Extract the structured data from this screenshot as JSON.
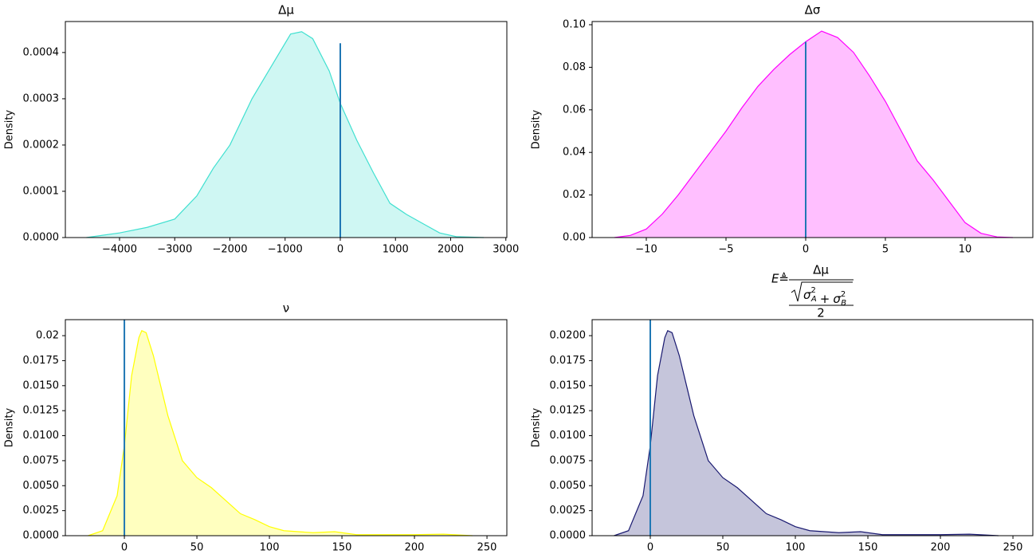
{
  "chart_data": [
    {
      "type": "area",
      "title": "Δμ",
      "ylabel": "Density",
      "color": "#40e0d0",
      "x": [
        -4600,
        -4000,
        -3500,
        -3000,
        -2600,
        -2300,
        -2000,
        -1600,
        -1200,
        -900,
        -700,
        -500,
        -200,
        0,
        300,
        600,
        900,
        1200,
        1500,
        1800,
        2100,
        2600
      ],
      "values": [
        0,
        1e-05,
        2.2e-05,
        4e-05,
        9e-05,
        0.00015,
        0.0002,
        0.0003,
        0.00038,
        0.00044,
        0.000445,
        0.00043,
        0.00036,
        0.00029,
        0.00021,
        0.00014,
        7.4e-05,
        5e-05,
        3e-05,
        1e-05,
        2e-06,
        0
      ],
      "xlim": [
        -4982,
        3018
      ],
      "ylim": [
        0,
        0.000467
      ],
      "xticks": [
        {
          "value": -4000,
          "label": "−4000"
        },
        {
          "value": -3000,
          "label": "−3000"
        },
        {
          "value": -2000,
          "label": "−2000"
        },
        {
          "value": -1000,
          "label": "−1000"
        },
        0,
        1000,
        2000,
        3000
      ],
      "yticks": [
        {
          "value": 0,
          "label": "0.0000"
        },
        {
          "value": 0.0001,
          "label": "0.0001"
        },
        {
          "value": 0.0002,
          "label": "0.0002"
        },
        {
          "value": 0.0003,
          "label": "0.0003"
        },
        {
          "value": 0.0004,
          "label": "0.0004"
        }
      ],
      "vline": {
        "x": 0,
        "top": 0.00042,
        "color": "#1f77b4"
      }
    },
    {
      "type": "area",
      "title": "Δσ",
      "ylabel": "Density",
      "color": "#ff00ff",
      "x": [
        -12,
        -11,
        -10,
        -9,
        -8,
        -7,
        -6,
        -5,
        -4,
        -3,
        -2,
        -1,
        0,
        1,
        2,
        3,
        4,
        5,
        6,
        7,
        8,
        9,
        10,
        11,
        12,
        13
      ],
      "values": [
        0,
        0.001,
        0.004,
        0.011,
        0.02,
        0.03,
        0.04,
        0.05,
        0.061,
        0.071,
        0.079,
        0.086,
        0.092,
        0.097,
        0.094,
        0.087,
        0.076,
        0.064,
        0.05,
        0.036,
        0.027,
        0.017,
        0.007,
        0.002,
        0.0003,
        0
      ],
      "xlim": [
        -13.4,
        14.25
      ],
      "ylim": [
        0,
        0.1015
      ],
      "xticks": [
        {
          "value": -10,
          "label": "−10"
        },
        {
          "value": -5,
          "label": "−5"
        },
        0,
        5,
        10
      ],
      "yticks": [
        {
          "value": 0,
          "label": "0.00"
        },
        {
          "value": 0.02,
          "label": "0.02"
        },
        {
          "value": 0.04,
          "label": "0.04"
        },
        {
          "value": 0.06,
          "label": "0.06"
        },
        {
          "value": 0.08,
          "label": "0.08"
        },
        {
          "value": 0.1,
          "label": "0.10"
        }
      ],
      "vline": {
        "x": 0,
        "top": 0.092,
        "color": "#1f77b4"
      }
    },
    {
      "type": "area",
      "title": "ν",
      "ylabel": "Density",
      "color": "#ffff00",
      "x": [
        -25,
        -15,
        -5,
        0,
        5,
        10,
        12,
        15,
        20,
        25,
        30,
        40,
        50,
        60,
        70,
        80,
        90,
        100,
        110,
        130,
        145,
        160,
        200,
        220,
        240
      ],
      "values": [
        0,
        0.0005,
        0.004,
        0.009,
        0.016,
        0.0198,
        0.0205,
        0.0203,
        0.018,
        0.015,
        0.012,
        0.0075,
        0.0058,
        0.0048,
        0.0035,
        0.0022,
        0.0016,
        0.0009,
        0.0005,
        0.0003,
        0.0004,
        0.0001,
        0.0001,
        0.00015,
        0
      ],
      "xlim": [
        -40.7,
        263.7
      ],
      "ylim": [
        0,
        0.0216
      ],
      "xticks": [
        0,
        50,
        100,
        150,
        200,
        250
      ],
      "yticks": [
        {
          "value": 0,
          "label": "0.0000"
        },
        {
          "value": 0.0025,
          "label": "0.0025"
        },
        {
          "value": 0.005,
          "label": "0.0050"
        },
        {
          "value": 0.0075,
          "label": "0.0075"
        },
        {
          "value": 0.01,
          "label": "0.0100"
        },
        {
          "value": 0.0125,
          "label": "0.0125"
        },
        {
          "value": 0.015,
          "label": "0.0150"
        },
        {
          "value": 0.0175,
          "label": "0.0175"
        },
        0.02
      ],
      "yticks_note_unused": null,
      "vline": {
        "x": 0,
        "top": 0.0216,
        "color": "#1f77b4"
      }
    },
    {
      "type": "area",
      "title": {
        "lhs": "E≜",
        "numerator": "Δμ",
        "radicand": [
          {
            "base": "σ",
            "sup": "2",
            "sub": "A"
          },
          "+",
          {
            "base": "σ",
            "sup": "2",
            "sub": "B"
          }
        ],
        "denominator": "2"
      },
      "ylabel": "Density",
      "color": "#191970",
      "x": [
        -25,
        -15,
        -5,
        0,
        5,
        10,
        12,
        15,
        20,
        25,
        30,
        40,
        50,
        60,
        70,
        80,
        90,
        100,
        110,
        130,
        145,
        160,
        200,
        220,
        240
      ],
      "values": [
        0,
        0.0005,
        0.004,
        0.009,
        0.016,
        0.0198,
        0.0205,
        0.0203,
        0.018,
        0.015,
        0.012,
        0.0075,
        0.0058,
        0.0048,
        0.0035,
        0.0022,
        0.0016,
        0.0009,
        0.0005,
        0.0003,
        0.0004,
        0.0001,
        0.0001,
        0.00015,
        0
      ],
      "xlim": [
        -40.1,
        263.7
      ],
      "ylim": [
        0,
        0.0216
      ],
      "xticks": [
        0,
        50,
        100,
        150,
        200,
        250
      ],
      "yticks": [
        {
          "value": 0,
          "label": "0.0000"
        },
        {
          "value": 0.0025,
          "label": "0.0025"
        },
        {
          "value": 0.005,
          "label": "0.0050"
        },
        {
          "value": 0.0075,
          "label": "0.0075"
        },
        {
          "value": 0.01,
          "label": "0.0100"
        },
        {
          "value": 0.0125,
          "label": "0.0125"
        },
        {
          "value": 0.015,
          "label": "0.0150"
        },
        {
          "value": 0.0175,
          "label": "0.0175"
        },
        {
          "value": 0.02,
          "label": "0.0200"
        }
      ],
      "vline": {
        "x": 0,
        "top": 0.0216,
        "color": "#1f77b4"
      }
    }
  ]
}
